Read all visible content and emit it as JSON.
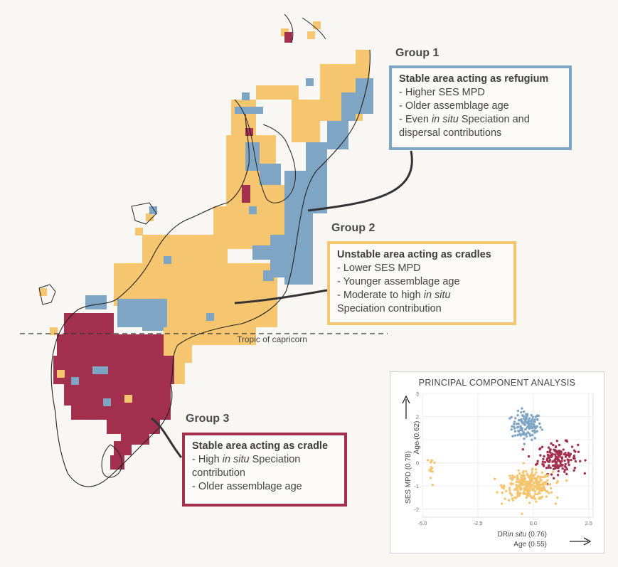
{
  "colors": {
    "group1": "#7fa5c5",
    "group2": "#f5c56f",
    "group3": "#a3304e",
    "background": "#f9f7f4"
  },
  "tropic_label": "Tropic of capricorn",
  "groups": [
    {
      "title": "Group 1",
      "heading": "Stable area acting as refugium",
      "lines": [
        [
          "- Higher SES MPD"
        ],
        [
          "- Older assemblage age"
        ],
        [
          "- Even ",
          {
            "i": "in situ"
          },
          " Speciation and"
        ],
        [
          "dispersal contributions"
        ]
      ]
    },
    {
      "title": "Group 2",
      "heading": "Unstable area acting as cradles",
      "lines": [
        [
          "- Lower SES MPD"
        ],
        [
          "- Younger assemblage age"
        ],
        [
          "- Moderate to high ",
          {
            "i": "in situ"
          }
        ],
        [
          "Speciation contribution"
        ]
      ]
    },
    {
      "title": "Group 3",
      "heading": "Stable area acting as cradle",
      "lines": [
        [
          "- High ",
          {
            "i": "in situ"
          },
          " Speciation"
        ],
        [
          "contribution"
        ],
        [
          "- Older assemblage age"
        ]
      ]
    }
  ],
  "pca": {
    "title": "PRINCIPAL COMPONENT ANALYSIS",
    "y_axis_line1": "SES MPD (0.78)",
    "y_axis_line2": "Age (0.62)",
    "x_axis_line1_a": "DR",
    "x_axis_line1_b": "in situ",
    "x_axis_line1_c": " (0.76)",
    "x_axis_line2": "Age (0.55)"
  },
  "chart_data": {
    "type": "scatter",
    "title": "PRINCIPAL COMPONENT ANALYSIS",
    "xlim": [
      -5,
      2.7
    ],
    "ylim": [
      -2.35,
      3
    ],
    "x_ticks": [
      "-5.0",
      "-2.5",
      "0.0",
      "2.5"
    ],
    "y_ticks": [
      "-2",
      "-1",
      "0",
      "1",
      "2",
      "3"
    ],
    "grid": true,
    "series": [
      {
        "color": "#7fa5c5",
        "cluster": {
          "center": [
            -0.3,
            1.6
          ],
          "spread": [
            0.55,
            0.5
          ],
          "n": 130
        }
      },
      {
        "color": "#a3304e",
        "cluster": {
          "center": [
            1.1,
            0.2
          ],
          "spread": [
            0.75,
            0.55
          ],
          "n": 170
        }
      },
      {
        "color": "#f5c56f",
        "cluster": {
          "center": [
            -0.2,
            -1.0
          ],
          "spread": [
            0.9,
            0.5
          ],
          "n": 300
        }
      },
      {
        "color": "#f5c56f",
        "cluster": {
          "center": [
            -4.6,
            -0.3
          ],
          "spread": [
            0.15,
            0.6
          ],
          "n": 14
        }
      }
    ]
  }
}
